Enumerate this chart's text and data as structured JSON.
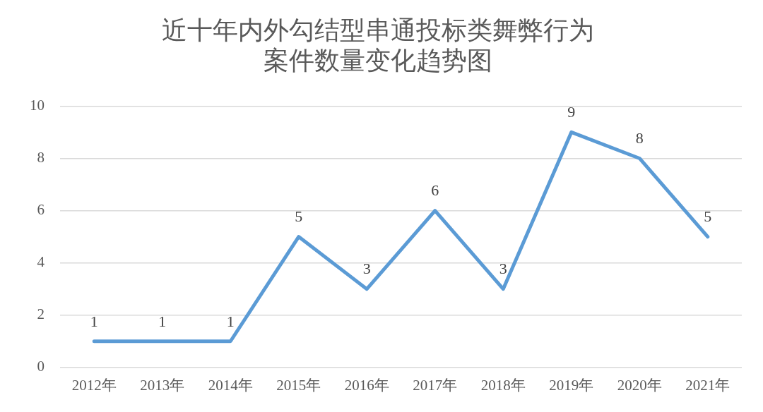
{
  "chart_data": {
    "type": "line",
    "title": "近十年内外勾结型串通投标类舞弊行为案件数量变化趋势图",
    "categories": [
      "2012年",
      "2013年",
      "2014年",
      "2015年",
      "2016年",
      "2017年",
      "2018年",
      "2019年",
      "2020年",
      "2021年"
    ],
    "series": [
      {
        "color": "#5b9bd5",
        "values": [
          1,
          1,
          1,
          5,
          3,
          6,
          3,
          9,
          8,
          5
        ]
      }
    ],
    "ylim": [
      0,
      10
    ],
    "yticks": [
      0,
      2,
      4,
      6,
      8,
      10
    ],
    "grid": "y",
    "data_labels": true,
    "marker": "none",
    "line_style": "solid",
    "legend": false
  }
}
